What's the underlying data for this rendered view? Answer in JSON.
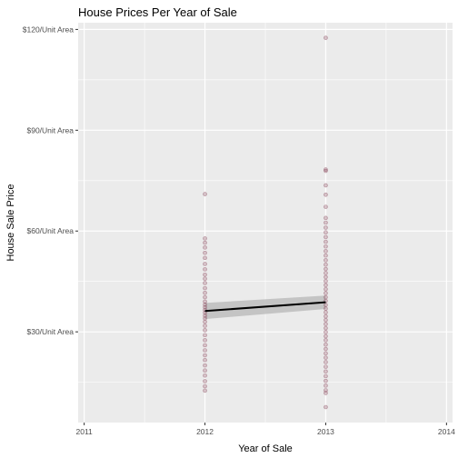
{
  "chart_data": {
    "type": "scatter",
    "title": "House Prices Per Year of Sale",
    "xlabel": "Year of Sale",
    "ylabel": "House Sale Price",
    "x_ticks": [
      2011,
      2012,
      2013,
      2014
    ],
    "x_tick_labels": [
      "2011",
      "2012",
      "2013",
      "2014"
    ],
    "y_ticks": [
      30,
      60,
      90,
      120
    ],
    "y_tick_labels": [
      "$30/Unit Area",
      "$60/Unit Area",
      "$90/Unit Area",
      "$120/Unit Area"
    ],
    "xlim": [
      2010.95,
      2014.05
    ],
    "ylim": [
      3,
      122
    ],
    "grid": true,
    "background_color": "#EBEBEB",
    "point_color": "#8B4A5E",
    "points": [
      {
        "x": 2012,
        "y": 71.0
      },
      {
        "x": 2012,
        "y": 57.8
      },
      {
        "x": 2012,
        "y": 56.5
      },
      {
        "x": 2012,
        "y": 55.1
      },
      {
        "x": 2012,
        "y": 53.5
      },
      {
        "x": 2012,
        "y": 52.0
      },
      {
        "x": 2012,
        "y": 50.2
      },
      {
        "x": 2012,
        "y": 48.6
      },
      {
        "x": 2012,
        "y": 47.0
      },
      {
        "x": 2012,
        "y": 45.8
      },
      {
        "x": 2012,
        "y": 44.5
      },
      {
        "x": 2012,
        "y": 43.0
      },
      {
        "x": 2012,
        "y": 41.6
      },
      {
        "x": 2012,
        "y": 40.3
      },
      {
        "x": 2012,
        "y": 39.0
      },
      {
        "x": 2012,
        "y": 38.1
      },
      {
        "x": 2012,
        "y": 37.3
      },
      {
        "x": 2012,
        "y": 36.5
      },
      {
        "x": 2012,
        "y": 35.7
      },
      {
        "x": 2012,
        "y": 34.8
      },
      {
        "x": 2012,
        "y": 34.0
      },
      {
        "x": 2012,
        "y": 33.0
      },
      {
        "x": 2012,
        "y": 31.8
      },
      {
        "x": 2012,
        "y": 30.5
      },
      {
        "x": 2012,
        "y": 29.0
      },
      {
        "x": 2012,
        "y": 27.5
      },
      {
        "x": 2012,
        "y": 26.0
      },
      {
        "x": 2012,
        "y": 24.5
      },
      {
        "x": 2012,
        "y": 23.0
      },
      {
        "x": 2012,
        "y": 21.6
      },
      {
        "x": 2012,
        "y": 20.0
      },
      {
        "x": 2012,
        "y": 18.5
      },
      {
        "x": 2012,
        "y": 17.0
      },
      {
        "x": 2012,
        "y": 15.3
      },
      {
        "x": 2012,
        "y": 13.8
      },
      {
        "x": 2012,
        "y": 12.5
      },
      {
        "x": 2013,
        "y": 117.5
      },
      {
        "x": 2013,
        "y": 78.3
      },
      {
        "x": 2013,
        "y": 77.9
      },
      {
        "x": 2013,
        "y": 73.6
      },
      {
        "x": 2013,
        "y": 70.8
      },
      {
        "x": 2013,
        "y": 67.2
      },
      {
        "x": 2013,
        "y": 63.9
      },
      {
        "x": 2013,
        "y": 62.5
      },
      {
        "x": 2013,
        "y": 61.0
      },
      {
        "x": 2013,
        "y": 59.6
      },
      {
        "x": 2013,
        "y": 58.2
      },
      {
        "x": 2013,
        "y": 56.8
      },
      {
        "x": 2013,
        "y": 55.4
      },
      {
        "x": 2013,
        "y": 54.0
      },
      {
        "x": 2013,
        "y": 52.7
      },
      {
        "x": 2013,
        "y": 51.3
      },
      {
        "x": 2013,
        "y": 50.0
      },
      {
        "x": 2013,
        "y": 48.7
      },
      {
        "x": 2013,
        "y": 47.5
      },
      {
        "x": 2013,
        "y": 46.3
      },
      {
        "x": 2013,
        "y": 45.1
      },
      {
        "x": 2013,
        "y": 43.9
      },
      {
        "x": 2013,
        "y": 42.7
      },
      {
        "x": 2013,
        "y": 41.5
      },
      {
        "x": 2013,
        "y": 40.3
      },
      {
        "x": 2013,
        "y": 39.2
      },
      {
        "x": 2013,
        "y": 38.0
      },
      {
        "x": 2013,
        "y": 36.9
      },
      {
        "x": 2013,
        "y": 35.8
      },
      {
        "x": 2013,
        "y": 34.6
      },
      {
        "x": 2013,
        "y": 33.5
      },
      {
        "x": 2013,
        "y": 32.3
      },
      {
        "x": 2013,
        "y": 31.1
      },
      {
        "x": 2013,
        "y": 29.9
      },
      {
        "x": 2013,
        "y": 28.7
      },
      {
        "x": 2013,
        "y": 27.5
      },
      {
        "x": 2013,
        "y": 26.2
      },
      {
        "x": 2013,
        "y": 24.9
      },
      {
        "x": 2013,
        "y": 23.6
      },
      {
        "x": 2013,
        "y": 22.3
      },
      {
        "x": 2013,
        "y": 21.0
      },
      {
        "x": 2013,
        "y": 19.6
      },
      {
        "x": 2013,
        "y": 18.2
      },
      {
        "x": 2013,
        "y": 16.8
      },
      {
        "x": 2013,
        "y": 15.4
      },
      {
        "x": 2013,
        "y": 14.0
      },
      {
        "x": 2013,
        "y": 12.6
      },
      {
        "x": 2013,
        "y": 11.8
      },
      {
        "x": 2013,
        "y": 7.6
      }
    ],
    "trend": {
      "type": "linear",
      "start": {
        "x": 2012,
        "y": 36.2
      },
      "end": {
        "x": 2013,
        "y": 38.8
      },
      "ci_lower": [
        33.8,
        36.8
      ],
      "ci_upper": [
        38.6,
        40.8
      ],
      "line_color": "#000000",
      "ci_color": "#BDBDBD"
    }
  }
}
